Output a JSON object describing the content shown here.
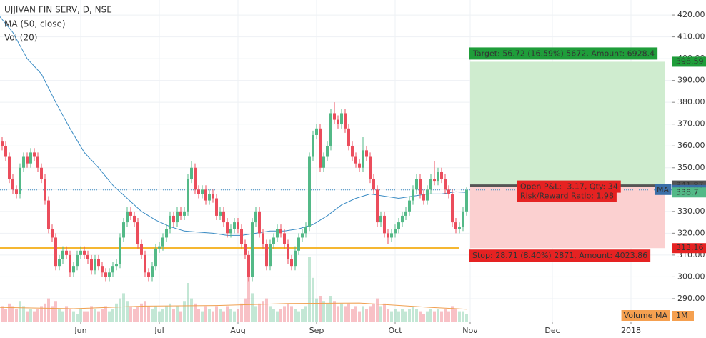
{
  "header": {
    "symbol": "UJJIVAN FIN SERV, D, NSE",
    "ma_legend": "MA (50, close)",
    "vol_legend": "Vol (20)"
  },
  "chart_data": {
    "type": "candlestick",
    "xlim": [
      -0.6,
      187.4
    ],
    "xticks": [
      {
        "value": 22,
        "label": "Jun"
      },
      {
        "value": 44,
        "label": "Jul"
      },
      {
        "value": 66,
        "label": "Aug"
      },
      {
        "value": 88,
        "label": "Sep"
      },
      {
        "value": 110,
        "label": "Oct"
      },
      {
        "value": 131,
        "label": "Nov"
      },
      {
        "value": 154,
        "label": "Dec"
      },
      {
        "value": 176,
        "label": "2018"
      }
    ],
    "ylim": [
      279.5,
      426.9
    ],
    "yticks": [
      {
        "value": 290,
        "label": "290.00"
      },
      {
        "value": 300,
        "label": "300.00"
      },
      {
        "value": 310,
        "label": "310.00"
      },
      {
        "value": 320,
        "label": "320.00"
      },
      {
        "value": 330,
        "label": "330.00"
      },
      {
        "value": 340,
        "label": "340.00"
      },
      {
        "value": 350,
        "label": "350.00"
      },
      {
        "value": 360,
        "label": "360.00"
      },
      {
        "value": 370,
        "label": "370.00"
      },
      {
        "value": 380,
        "label": "380.00"
      },
      {
        "value": 390,
        "label": "390.00"
      },
      {
        "value": 400,
        "label": "400.00"
      },
      {
        "value": 410,
        "label": "410.00"
      },
      {
        "value": 420,
        "label": "420.00"
      }
    ],
    "grid": true,
    "up_color": "#53b987",
    "down_color": "#eb4d5c",
    "candles": [
      [
        362,
        364,
        358,
        360
      ],
      [
        360,
        362,
        353,
        355
      ],
      [
        355,
        357,
        343,
        345
      ],
      [
        345,
        347,
        338,
        340
      ],
      [
        340,
        342,
        336,
        338
      ],
      [
        338,
        352,
        336,
        350
      ],
      [
        350,
        357,
        348,
        355
      ],
      [
        355,
        357,
        350,
        352
      ],
      [
        352,
        359,
        350,
        357
      ],
      [
        357,
        359,
        353,
        355
      ],
      [
        355,
        357,
        348,
        350
      ],
      [
        350,
        352,
        343,
        345
      ],
      [
        345,
        347,
        333,
        335
      ],
      [
        335,
        337,
        320,
        322
      ],
      [
        322,
        324,
        316,
        318
      ],
      [
        318,
        320,
        303,
        305
      ],
      [
        305,
        310,
        303,
        308
      ],
      [
        308,
        314,
        306,
        312
      ],
      [
        312,
        314,
        308,
        310
      ],
      [
        310,
        312,
        300,
        302
      ],
      [
        302,
        307,
        300,
        305
      ],
      [
        305,
        312,
        303,
        310
      ],
      [
        310,
        314,
        308,
        312
      ],
      [
        312,
        314,
        308,
        310
      ],
      [
        310,
        312,
        306,
        308
      ],
      [
        308,
        310,
        301,
        303
      ],
      [
        303,
        310,
        301,
        308
      ],
      [
        308,
        310,
        303,
        305
      ],
      [
        305,
        307,
        300,
        302
      ],
      [
        302,
        304,
        298,
        300
      ],
      [
        300,
        304,
        298,
        302
      ],
      [
        302,
        307,
        300,
        305
      ],
      [
        305,
        308,
        303,
        306
      ],
      [
        306,
        320,
        304,
        318
      ],
      [
        318,
        327,
        316,
        325
      ],
      [
        325,
        332,
        323,
        330
      ],
      [
        330,
        332,
        326,
        328
      ],
      [
        328,
        330,
        323,
        325
      ],
      [
        325,
        327,
        313,
        315
      ],
      [
        315,
        317,
        308,
        310
      ],
      [
        310,
        312,
        300,
        302
      ],
      [
        302,
        304,
        298,
        300
      ],
      [
        300,
        307,
        298,
        305
      ],
      [
        305,
        315,
        303,
        313
      ],
      [
        313,
        316,
        311,
        314
      ],
      [
        314,
        320,
        312,
        318
      ],
      [
        318,
        324,
        316,
        322
      ],
      [
        322,
        330,
        320,
        328
      ],
      [
        328,
        330,
        323,
        325
      ],
      [
        325,
        332,
        323,
        330
      ],
      [
        330,
        332,
        326,
        328
      ],
      [
        328,
        332,
        326,
        330
      ],
      [
        330,
        347,
        328,
        345
      ],
      [
        345,
        353,
        343,
        350
      ],
      [
        350,
        352,
        338,
        340
      ],
      [
        340,
        342,
        336,
        338
      ],
      [
        338,
        342,
        336,
        340
      ],
      [
        340,
        342,
        333,
        335
      ],
      [
        335,
        340,
        333,
        338
      ],
      [
        338,
        340,
        334,
        336
      ],
      [
        336,
        338,
        326,
        328
      ],
      [
        328,
        332,
        326,
        330
      ],
      [
        330,
        332,
        323,
        325
      ],
      [
        325,
        327,
        318,
        320
      ],
      [
        320,
        324,
        318,
        322
      ],
      [
        322,
        327,
        320,
        325
      ],
      [
        325,
        327,
        320,
        322
      ],
      [
        322,
        324,
        313,
        315
      ],
      [
        315,
        317,
        308,
        310
      ],
      [
        310,
        312,
        298,
        300
      ],
      [
        300,
        327,
        298,
        325
      ],
      [
        325,
        332,
        323,
        330
      ],
      [
        330,
        332,
        318,
        320
      ],
      [
        320,
        322,
        313,
        315
      ],
      [
        315,
        317,
        303,
        305
      ],
      [
        305,
        317,
        303,
        315
      ],
      [
        315,
        320,
        313,
        318
      ],
      [
        318,
        324,
        316,
        322
      ],
      [
        322,
        324,
        318,
        320
      ],
      [
        320,
        322,
        313,
        315
      ],
      [
        315,
        317,
        306,
        308
      ],
      [
        308,
        310,
        303,
        305
      ],
      [
        305,
        314,
        303,
        312
      ],
      [
        312,
        320,
        310,
        318
      ],
      [
        318,
        322,
        316,
        320
      ],
      [
        320,
        325,
        318,
        323
      ],
      [
        323,
        357,
        321,
        355
      ],
      [
        355,
        367,
        353,
        365
      ],
      [
        365,
        370,
        363,
        368
      ],
      [
        368,
        370,
        348,
        350
      ],
      [
        350,
        357,
        348,
        355
      ],
      [
        355,
        362,
        353,
        360
      ],
      [
        360,
        377,
        358,
        375
      ],
      [
        375,
        380,
        370,
        372
      ],
      [
        372,
        374,
        368,
        370
      ],
      [
        370,
        377,
        368,
        375
      ],
      [
        375,
        377,
        366,
        368
      ],
      [
        368,
        370,
        358,
        360
      ],
      [
        360,
        362,
        353,
        355
      ],
      [
        355,
        357,
        350,
        352
      ],
      [
        352,
        354,
        348,
        350
      ],
      [
        350,
        364,
        348,
        358
      ],
      [
        358,
        360,
        353,
        355
      ],
      [
        355,
        357,
        343,
        345
      ],
      [
        345,
        347,
        338,
        340
      ],
      [
        340,
        342,
        323,
        325
      ],
      [
        325,
        330,
        323,
        328
      ],
      [
        328,
        330,
        318,
        320
      ],
      [
        320,
        322,
        315,
        318
      ],
      [
        318,
        322,
        316,
        320
      ],
      [
        320,
        324,
        318,
        322
      ],
      [
        322,
        327,
        320,
        325
      ],
      [
        325,
        330,
        323,
        328
      ],
      [
        328,
        332,
        326,
        330
      ],
      [
        330,
        337,
        328,
        335
      ],
      [
        335,
        342,
        333,
        340
      ],
      [
        340,
        347,
        338,
        345
      ],
      [
        345,
        347,
        336,
        338
      ],
      [
        338,
        340,
        333,
        335
      ],
      [
        335,
        342,
        333,
        340
      ],
      [
        340,
        347,
        338,
        345
      ],
      [
        345,
        353,
        342,
        344
      ],
      [
        344,
        350,
        342,
        348
      ],
      [
        348,
        350,
        343,
        345
      ],
      [
        345,
        347,
        338,
        340
      ],
      [
        340,
        342,
        336,
        338
      ],
      [
        338,
        340,
        323,
        325
      ],
      [
        325,
        327,
        320,
        322
      ],
      [
        322,
        325,
        320,
        323
      ],
      [
        323,
        332,
        321,
        330
      ],
      [
        330,
        341,
        328,
        339.84
      ]
    ],
    "vlim": [
      0,
      12.5
    ],
    "volume": [
      0.6,
      0.5,
      0.7,
      0.6,
      0.5,
      0.8,
      0.6,
      0.4,
      0.5,
      0.4,
      0.5,
      0.6,
      0.7,
      0.9,
      0.6,
      0.8,
      0.5,
      0.4,
      0.6,
      0.5,
      0.4,
      0.3,
      0.5,
      0.4,
      0.4,
      0.6,
      0.5,
      0.4,
      0.5,
      0.6,
      0.4,
      0.5,
      0.7,
      0.9,
      1.1,
      0.8,
      0.6,
      0.5,
      0.6,
      0.7,
      0.8,
      0.6,
      0.5,
      0.6,
      0.4,
      0.5,
      0.6,
      0.7,
      0.5,
      0.6,
      0.4,
      0.8,
      1.5,
      0.9,
      0.7,
      0.5,
      0.4,
      0.6,
      0.5,
      0.4,
      0.6,
      0.5,
      0.4,
      0.6,
      0.5,
      0.4,
      0.5,
      0.7,
      0.9,
      2.0,
      1.1,
      0.6,
      0.7,
      0.8,
      0.9,
      0.6,
      0.5,
      0.4,
      0.5,
      0.6,
      0.7,
      0.6,
      0.5,
      0.4,
      0.5,
      0.6,
      2.5,
      1.7,
      0.9,
      1.0,
      0.8,
      0.7,
      1.0,
      0.8,
      0.6,
      0.7,
      0.6,
      0.7,
      0.5,
      0.6,
      0.4,
      0.6,
      0.5,
      0.6,
      0.7,
      0.9,
      0.6,
      0.7,
      0.5,
      0.4,
      0.5,
      0.4,
      0.5,
      0.4,
      0.5,
      0.6,
      0.5,
      0.4,
      0.3,
      0.4,
      0.5,
      0.4,
      0.5,
      0.4,
      0.5,
      0.4,
      0.6,
      0.5,
      0.4,
      0.4,
      0.3
    ],
    "volume_ma": {
      "x": [
        -1,
        20,
        40,
        60,
        80,
        100,
        120,
        130
      ],
      "values": [
        0.55,
        0.5,
        0.6,
        0.62,
        0.7,
        0.72,
        0.55,
        0.48
      ]
    },
    "volume_legend": "Volume MA",
    "volume_unit": "1M",
    "ma": {
      "name": "MA",
      "color": "#3b8cc4",
      "x": [
        -1,
        3,
        7,
        11,
        15,
        19,
        23,
        27,
        31,
        35,
        39,
        43,
        47,
        51,
        55,
        59,
        63,
        67,
        71,
        75,
        79,
        83,
        87,
        91,
        95,
        99,
        103,
        107,
        111,
        115,
        119,
        123,
        127,
        130
      ],
      "values": [
        420,
        412,
        400,
        393,
        380,
        368,
        357,
        350,
        342,
        336,
        330,
        326,
        323,
        321,
        320.5,
        320,
        319,
        319,
        320,
        321,
        321,
        322,
        324,
        328,
        333,
        336,
        338,
        337,
        336,
        337,
        338,
        338,
        339,
        338.7
      ]
    },
    "support": {
      "value": 313.3,
      "x": [
        -1,
        128
      ],
      "color": "#f5b731"
    },
    "position": {
      "x": [
        131,
        185.5
      ],
      "entry": 341.87,
      "target": 398.59,
      "stop": 313.16,
      "target_text": "Target: 56.72 (16.59%) 5672, Amount: 6928.4",
      "pnl_text": "Open P&L: -3.17, Qty: 34",
      "rr_text": "Risk/Reward Ratio: 1.98",
      "stop_text": "Stop: 28.71 (8.40%) 2871, Amount: 4023.86"
    }
  }
}
